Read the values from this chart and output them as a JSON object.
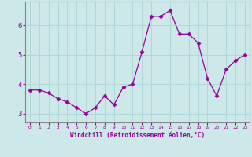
{
  "x": [
    0,
    1,
    2,
    3,
    4,
    5,
    6,
    7,
    8,
    9,
    10,
    11,
    12,
    13,
    14,
    15,
    16,
    17,
    18,
    19,
    20,
    21,
    22,
    23
  ],
  "y": [
    3.8,
    3.8,
    3.7,
    3.5,
    3.4,
    3.2,
    3.0,
    3.2,
    3.6,
    3.3,
    3.9,
    4.0,
    5.1,
    6.3,
    6.3,
    6.5,
    5.7,
    5.7,
    5.4,
    4.2,
    3.6,
    4.5,
    4.8,
    5.0
  ],
  "line_color": "#990099",
  "marker": "D",
  "bg_color": "#cce8e8",
  "grid_color": "#b0d8d8",
  "xlabel": "Windchill (Refroidissement éolien,°C)",
  "ylabel": "",
  "xlim": [
    -0.5,
    23.5
  ],
  "ylim": [
    2.7,
    6.8
  ],
  "yticks": [
    3,
    4,
    5,
    6
  ],
  "xticks": [
    0,
    1,
    2,
    3,
    4,
    5,
    6,
    7,
    8,
    9,
    10,
    11,
    12,
    13,
    14,
    15,
    16,
    17,
    18,
    19,
    20,
    21,
    22,
    23
  ],
  "xlabel_color": "#990099",
  "axis_color": "#999999",
  "tick_color": "#990099",
  "spine_color": "#888888"
}
